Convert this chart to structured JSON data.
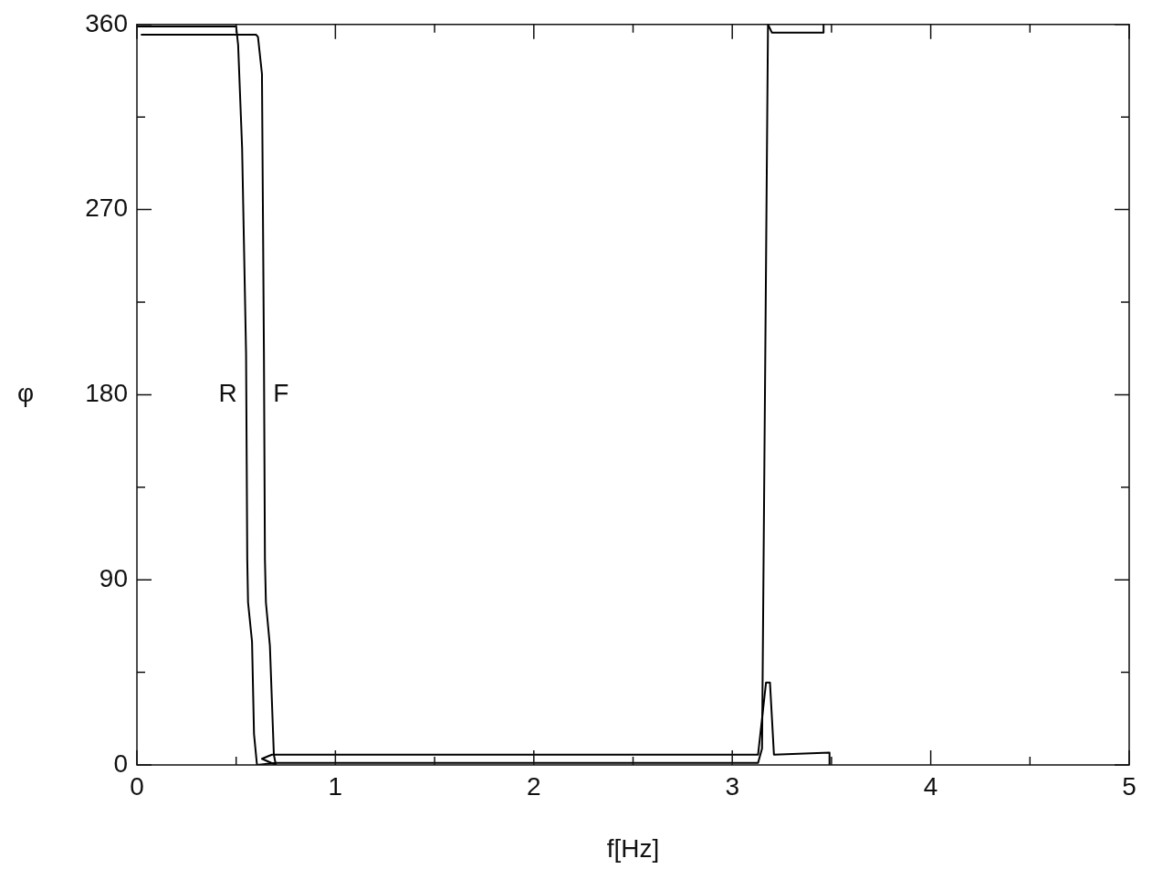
{
  "chart_data": {
    "type": "line",
    "xlabel": "f[Hz]",
    "ylabel": "φ",
    "xlim": [
      0,
      5
    ],
    "ylim": [
      0,
      360
    ],
    "xticks": [
      0,
      {
        "value": 0.5,
        "label": null
      },
      1,
      {
        "value": 1.5,
        "label": null
      },
      2,
      {
        "value": 2.5,
        "label": null
      },
      3,
      {
        "value": 3.5,
        "label": null
      },
      4,
      {
        "value": 4.5,
        "label": null
      },
      5
    ],
    "yticks": [
      0,
      {
        "value": 45,
        "label": null
      },
      90,
      {
        "value": 135,
        "label": null
      },
      180,
      {
        "value": 225,
        "label": null
      },
      270,
      {
        "value": 315,
        "label": null
      },
      360
    ],
    "grid": false,
    "legend": false,
    "marker": "none",
    "line_style": "solid",
    "series": [
      {
        "name": "R",
        "color": "#000000",
        "x": [
          0,
          0.5,
          0.51,
          0.53,
          0.55,
          0.556,
          0.56,
          0.58,
          0.59,
          0.605,
          0.7,
          1.5,
          2.5,
          3.13,
          3.15,
          3.18,
          3.2,
          3.46,
          3.46
        ],
        "values": [
          359,
          359,
          350,
          300,
          200,
          100,
          79,
          60,
          15,
          0,
          1,
          1,
          1,
          1,
          8,
          360,
          356,
          356,
          360
        ]
      },
      {
        "name": "F",
        "color": "#000000",
        "x": [
          0.02,
          0.5,
          0.6,
          0.61,
          0.63,
          0.64,
          0.645,
          0.65,
          0.67,
          0.69,
          0.7,
          0.63,
          0.68,
          1.5,
          2.5,
          3.13,
          3.17,
          3.19,
          3.21,
          3.49,
          3.49
        ],
        "values": [
          355,
          355,
          355,
          354,
          336,
          200,
          100,
          79,
          58,
          5,
          0,
          3,
          5,
          5,
          5,
          5,
          40,
          40,
          5,
          6,
          0
        ]
      }
    ]
  }
}
